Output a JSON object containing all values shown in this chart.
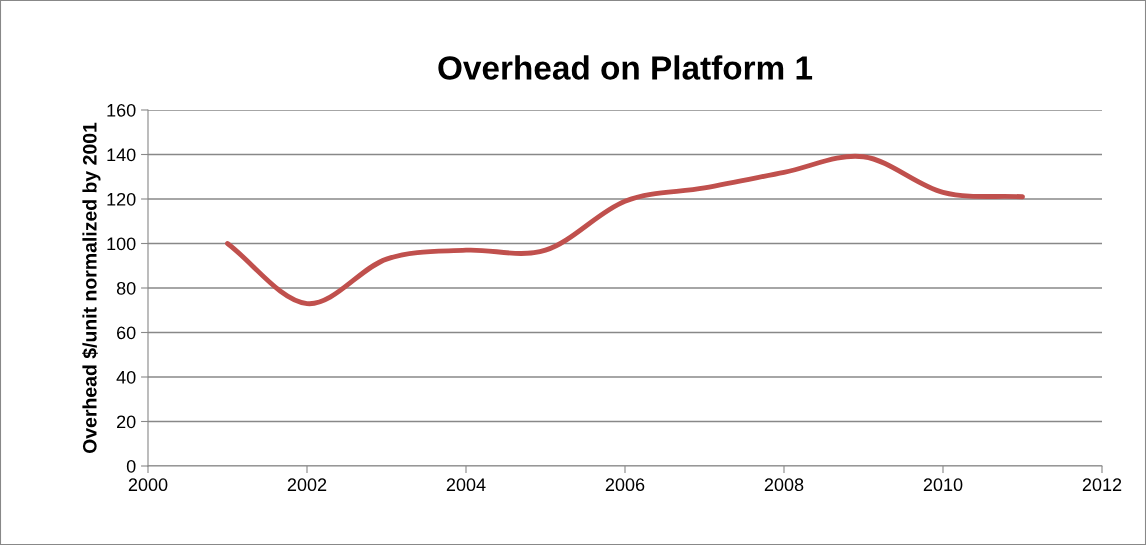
{
  "chart_data": {
    "type": "line",
    "title": "Overhead on Platform 1",
    "ylabel": "Overhead $/unit normalized by 2001",
    "x": [
      2001,
      2002,
      2003,
      2004,
      2005,
      2006,
      2007,
      2008,
      2009,
      2010,
      2011
    ],
    "series": [
      {
        "color": "#c0504d",
        "values": [
          100,
          73,
          93,
          97,
          97,
          119,
          125,
          132,
          139,
          123,
          121
        ]
      }
    ],
    "xlim": [
      2000,
      2012
    ],
    "xticks": [
      2000,
      2002,
      2004,
      2006,
      2008,
      2010,
      2012
    ],
    "ylim": [
      0,
      160
    ],
    "yticks": [
      0,
      20,
      40,
      60,
      80,
      100,
      120,
      140,
      160
    ],
    "grid": "y",
    "legend": false,
    "marker": "none",
    "line_style": "solid"
  }
}
